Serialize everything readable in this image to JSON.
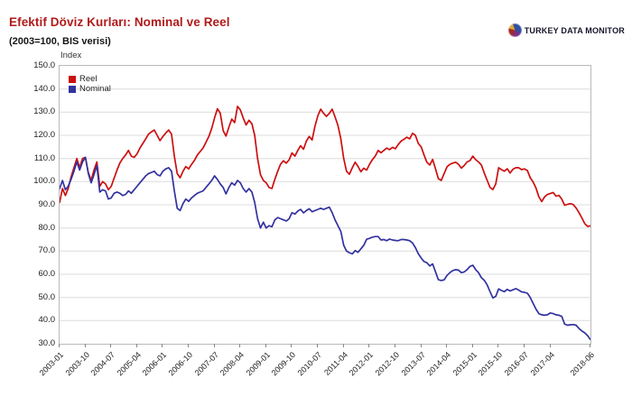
{
  "header": {
    "title": "Efektif Döviz Kurları: Nominal ve Reel",
    "subtitle": "(2003=100, BIS verisi)"
  },
  "logo": {
    "text": "TURKEY DATA MONITOR",
    "icon": "pie-chart-icon"
  },
  "colors": {
    "title": "#B21A1A",
    "reel_line": "#CC0F0F",
    "nominal_line": "#3232A0",
    "gridline": "#dcdcdc",
    "frame": "#b9b9b9",
    "axis_text": "#222222"
  },
  "chart_data": {
    "type": "line",
    "title": "Efektif Döviz Kurları: Nominal ve Reel",
    "subtitle": "(2003=100, BIS verisi)",
    "y_axis_label": "Index",
    "ylim": [
      30,
      150
    ],
    "y_tick_step": 10,
    "y_tick_labels": [
      "150.0",
      "140.0",
      "130.0",
      "120.0",
      "110.0",
      "100.0",
      "90.0",
      "80.0",
      "70.0",
      "60.0",
      "50.0",
      "40.0",
      "30.0"
    ],
    "x_start": "2003-01",
    "x_end": "2018-06",
    "frequency": "monthly",
    "grid": "horizontal",
    "legend_position": "top-left-inside",
    "x_tick_labels": [
      "2003-01",
      "2003-10",
      "2004-07",
      "2005-04",
      "2006-01",
      "2006-10",
      "2007-07",
      "2008-04",
      "2009-01",
      "2009-10",
      "2010-07",
      "2011-04",
      "2012-01",
      "2012-10",
      "2013-07",
      "2014-04",
      "2015-01",
      "2015-10",
      "2016-07",
      "2017-04",
      "2018-06"
    ],
    "x_tick_month_index": [
      0,
      9,
      18,
      27,
      36,
      45,
      54,
      63,
      72,
      81,
      90,
      99,
      108,
      117,
      126,
      135,
      144,
      153,
      162,
      171,
      185
    ],
    "series": [
      {
        "name": "Reel",
        "color": "#CC0F0F",
        "values": [
          91.0,
          97.0,
          94.0,
          97.0,
          102.0,
          106.0,
          110.0,
          106.0,
          110.0,
          110.5,
          104.0,
          100.5,
          105.0,
          108.5,
          98.0,
          100.0,
          99.0,
          96.5,
          98.0,
          101.5,
          105.0,
          108.0,
          110.0,
          111.5,
          113.5,
          111.0,
          110.5,
          112.0,
          114.5,
          116.5,
          118.5,
          120.5,
          121.5,
          122.3,
          120.0,
          117.7,
          119.5,
          121.0,
          122.3,
          120.5,
          111.0,
          103.5,
          101.7,
          104.5,
          106.5,
          105.5,
          107.5,
          109.2,
          111.5,
          113.0,
          114.5,
          117.0,
          119.5,
          123.0,
          127.5,
          131.5,
          129.5,
          122.0,
          119.7,
          123.5,
          127.0,
          125.5,
          132.5,
          131.0,
          127.5,
          124.5,
          126.5,
          125.0,
          120.0,
          110.0,
          103.0,
          100.5,
          99.5,
          97.5,
          97.0,
          101.0,
          104.5,
          107.5,
          109.0,
          108.0,
          109.5,
          112.4,
          111.0,
          113.5,
          115.5,
          114.0,
          117.5,
          119.5,
          118.0,
          124.0,
          128.5,
          131.3,
          129.5,
          128.2,
          129.5,
          131.3,
          128.0,
          124.3,
          118.5,
          110.0,
          104.5,
          103.2,
          106.0,
          108.4,
          106.5,
          104.3,
          105.8,
          105.0,
          107.5,
          109.5,
          111.0,
          113.5,
          112.5,
          113.5,
          114.5,
          113.8,
          114.8,
          114.2,
          116.0,
          117.5,
          118.3,
          119.2,
          118.5,
          120.9,
          120.0,
          116.5,
          115.0,
          111.5,
          108.4,
          107.2,
          109.6,
          105.5,
          101.3,
          100.5,
          103.5,
          106.4,
          107.5,
          108.0,
          108.4,
          107.5,
          105.8,
          107.0,
          108.5,
          109.1,
          111.0,
          109.5,
          108.5,
          107.2,
          103.7,
          100.5,
          97.5,
          96.6,
          99.0,
          106.0,
          105.2,
          104.5,
          105.6,
          103.7,
          105.4,
          106.0,
          106.0,
          105.2,
          105.5,
          104.8,
          101.7,
          99.9,
          97.3,
          93.5,
          91.4,
          93.4,
          94.5,
          94.9,
          95.3,
          93.7,
          94.1,
          92.5,
          89.8,
          90.2,
          90.5,
          90.1,
          88.6,
          86.6,
          84.3,
          81.9,
          80.7,
          80.9
        ]
      },
      {
        "name": "Nominal",
        "color": "#3232A0",
        "values": [
          97.0,
          100.5,
          96.5,
          98.0,
          101.0,
          104.5,
          108.5,
          105.0,
          108.5,
          110.5,
          103.5,
          99.5,
          103.0,
          107.0,
          95.5,
          96.5,
          96.0,
          92.5,
          93.0,
          95.0,
          95.5,
          95.0,
          94.0,
          94.5,
          96.0,
          95.0,
          96.5,
          98.0,
          99.5,
          101.0,
          102.5,
          103.5,
          104.0,
          104.5,
          103.0,
          102.5,
          104.5,
          105.5,
          106.0,
          104.5,
          96.0,
          88.5,
          87.5,
          90.5,
          92.5,
          91.5,
          93.0,
          94.0,
          95.0,
          95.5,
          96.0,
          97.5,
          99.0,
          100.5,
          102.5,
          101.0,
          99.0,
          97.5,
          94.7,
          97.5,
          99.5,
          98.5,
          100.5,
          99.5,
          97.0,
          95.5,
          97.0,
          95.5,
          91.0,
          84.0,
          80.0,
          82.5,
          80.0,
          81.0,
          80.5,
          83.5,
          84.5,
          84.0,
          83.5,
          83.0,
          84.0,
          86.6,
          86.0,
          87.3,
          88.0,
          86.5,
          87.5,
          88.3,
          87.0,
          87.5,
          88.0,
          88.5,
          88.0,
          88.5,
          89.0,
          86.6,
          83.5,
          81.0,
          78.5,
          72.5,
          70.0,
          69.3,
          68.8,
          70.2,
          69.5,
          71.0,
          72.5,
          75.1,
          75.5,
          76.0,
          76.3,
          76.3,
          74.8,
          75.0,
          74.5,
          75.2,
          74.8,
          74.6,
          74.5,
          75.0,
          75.0,
          74.8,
          74.5,
          73.5,
          71.5,
          68.9,
          67.0,
          65.5,
          65.0,
          63.6,
          64.5,
          61.0,
          57.7,
          57.3,
          57.6,
          59.5,
          60.7,
          61.6,
          62.0,
          61.8,
          60.7,
          61.0,
          62.0,
          63.4,
          63.9,
          62.0,
          60.7,
          58.5,
          57.4,
          55.4,
          52.5,
          49.8,
          50.5,
          53.7,
          53.0,
          52.5,
          53.5,
          52.8,
          53.3,
          53.8,
          53.2,
          52.4,
          52.2,
          51.8,
          50.0,
          47.5,
          45.0,
          43.0,
          42.5,
          42.3,
          42.5,
          43.3,
          43.0,
          42.5,
          42.3,
          41.8,
          38.5,
          38.0,
          38.2,
          38.3,
          38.0,
          36.6,
          35.5,
          34.7,
          33.5,
          31.8
        ]
      }
    ]
  }
}
